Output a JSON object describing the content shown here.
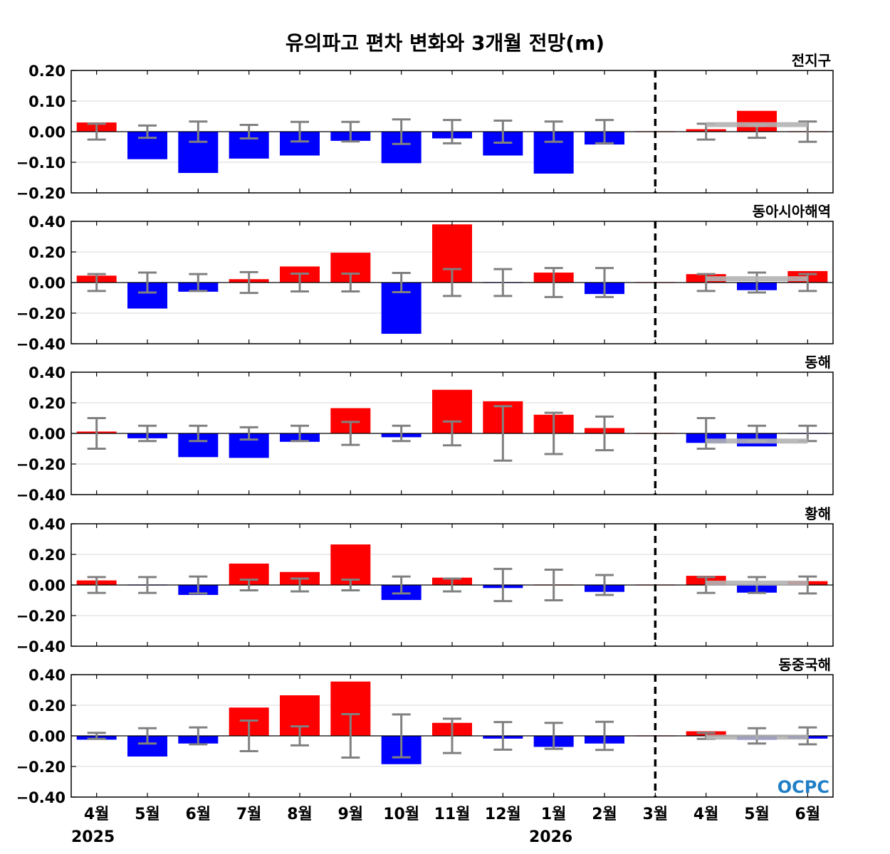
{
  "title": "유의파고 편차 변화와 3개월 전망(m)",
  "years": [
    "2025",
    "2026"
  ],
  "logo_text": "OCPC",
  "colors": {
    "positive": "#ff0000",
    "negative": "#0000ff",
    "errorbar": "#808080",
    "forecast_range": "#b3b3b3",
    "divider": "#000000",
    "grid": "#d9d9d9"
  },
  "chart_data": [
    {
      "type": "bar",
      "title": "전지구",
      "categories": [
        "4월",
        "5월",
        "6월",
        "7월",
        "8월",
        "9월",
        "10월",
        "11월",
        "12월",
        "1월",
        "2월",
        "3월",
        "4월",
        "5월",
        "6월"
      ],
      "ylim": [
        -0.2,
        0.2
      ],
      "yticks": [
        "0.20",
        "0.10",
        "0.00",
        "−0.10",
        "−0.20"
      ],
      "values": [
        0.03,
        -0.09,
        -0.135,
        -0.088,
        -0.078,
        -0.03,
        -0.103,
        -0.022,
        -0.078,
        -0.137,
        -0.042,
        0.0,
        0.008,
        0.068,
        0.0
      ],
      "error_bars": [
        0.026,
        0.02,
        0.033,
        0.022,
        0.032,
        0.032,
        0.04,
        0.038,
        0.036,
        0.033,
        0.038,
        0.0,
        0.026,
        0.02,
        0.033
      ],
      "forecast_range": {
        "from": 12,
        "to": 14,
        "value": 0.023
      },
      "grid": true
    },
    {
      "type": "bar",
      "title": "동아시아해역",
      "categories": [
        "4월",
        "5월",
        "6월",
        "7월",
        "8월",
        "9월",
        "10월",
        "11월",
        "12월",
        "1월",
        "2월",
        "3월",
        "4월",
        "5월",
        "6월"
      ],
      "ylim": [
        -0.4,
        0.4
      ],
      "yticks": [
        "0.40",
        "0.20",
        "0.00",
        "−0.20",
        "−0.40"
      ],
      "values": [
        0.045,
        -0.17,
        -0.06,
        0.022,
        0.105,
        0.195,
        -0.335,
        0.38,
        -0.005,
        0.065,
        -0.075,
        0.0,
        0.055,
        -0.05,
        0.075
      ],
      "error_bars": [
        0.055,
        0.065,
        0.055,
        0.068,
        0.058,
        0.058,
        0.063,
        0.088,
        0.088,
        0.095,
        0.095,
        0.0,
        0.055,
        0.065,
        0.055
      ],
      "forecast_range": {
        "from": 12,
        "to": 14,
        "value": 0.025
      },
      "grid": true
    },
    {
      "type": "bar",
      "title": "동해",
      "categories": [
        "4월",
        "5월",
        "6월",
        "7월",
        "8월",
        "9월",
        "10월",
        "11월",
        "12월",
        "1월",
        "2월",
        "3월",
        "4월",
        "5월",
        "6월"
      ],
      "ylim": [
        -0.4,
        0.4
      ],
      "yticks": [
        "0.40",
        "0.20",
        "0.00",
        "−0.20",
        "−0.40"
      ],
      "values": [
        0.012,
        -0.032,
        -0.155,
        -0.16,
        -0.055,
        0.165,
        -0.025,
        0.285,
        0.21,
        0.122,
        0.035,
        0.0,
        -0.062,
        -0.085,
        -0.005
      ],
      "error_bars": [
        0.1,
        0.05,
        0.05,
        0.04,
        0.05,
        0.075,
        0.05,
        0.078,
        0.178,
        0.135,
        0.11,
        0.0,
        0.1,
        0.05,
        0.05
      ],
      "forecast_range": {
        "from": 12,
        "to": 14,
        "value": -0.05
      },
      "grid": true
    },
    {
      "type": "bar",
      "title": "황해",
      "categories": [
        "4월",
        "5월",
        "6월",
        "7월",
        "8월",
        "9월",
        "10월",
        "11월",
        "12월",
        "1월",
        "2월",
        "3월",
        "4월",
        "5월",
        "6월"
      ],
      "ylim": [
        -0.4,
        0.4
      ],
      "yticks": [
        "0.40",
        "0.20",
        "0.00",
        "−0.20",
        "−0.40"
      ],
      "values": [
        0.03,
        -0.005,
        -0.065,
        0.14,
        0.085,
        0.265,
        -0.098,
        0.048,
        -0.02,
        0.0,
        -0.045,
        0.0,
        0.06,
        -0.05,
        0.025
      ],
      "error_bars": [
        0.052,
        0.052,
        0.055,
        0.035,
        0.042,
        0.035,
        0.055,
        0.042,
        0.105,
        0.1,
        0.065,
        0.0,
        0.052,
        0.052,
        0.055
      ],
      "forecast_range": {
        "from": 12,
        "to": 14,
        "value": 0.012
      },
      "grid": true
    },
    {
      "type": "bar",
      "title": "동중국해",
      "categories": [
        "4월",
        "5월",
        "6월",
        "7월",
        "8월",
        "9월",
        "10월",
        "11월",
        "12월",
        "1월",
        "2월",
        "3월",
        "4월",
        "5월",
        "6월"
      ],
      "ylim": [
        -0.4,
        0.4
      ],
      "yticks": [
        "0.40",
        "0.20",
        "0.00",
        "−0.20",
        "−0.40"
      ],
      "values": [
        -0.025,
        -0.135,
        -0.05,
        0.185,
        0.265,
        0.355,
        -0.185,
        0.085,
        -0.018,
        -0.072,
        -0.05,
        0.0,
        0.03,
        -0.025,
        -0.018
      ],
      "error_bars": [
        0.02,
        0.05,
        0.055,
        0.1,
        0.062,
        0.142,
        0.14,
        0.112,
        0.09,
        0.085,
        0.092,
        0.0,
        0.02,
        0.05,
        0.055
      ],
      "forecast_range": {
        "from": 12,
        "to": 14,
        "value": -0.008
      },
      "grid": true
    }
  ]
}
